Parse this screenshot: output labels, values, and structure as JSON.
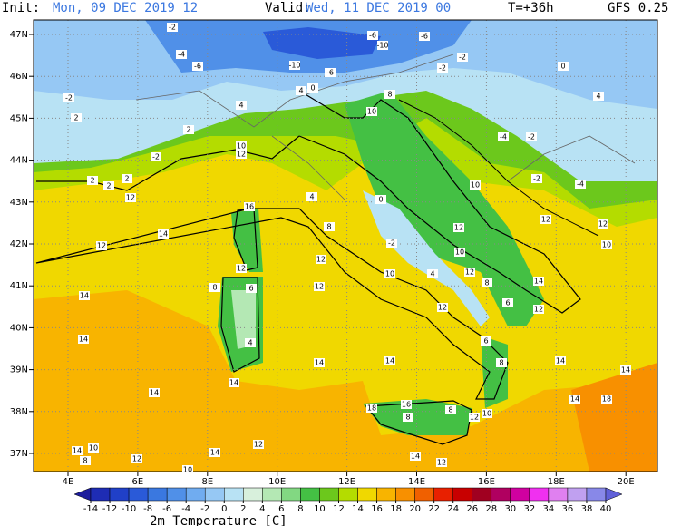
{
  "header": {
    "init_label": "Init:",
    "init": "Mon, 09 DEC 2019  12",
    "valid_label": "Valid:",
    "valid": "Wed, 11 DEC 2019  00",
    "step": "T=+36h",
    "model": "GFS 0.25"
  },
  "axes": {
    "lon_labels": [
      "4E",
      "6E",
      "8E",
      "10E",
      "12E",
      "14E",
      "16E",
      "18E",
      "20E"
    ],
    "lat_labels": [
      "47N",
      "46N",
      "45N",
      "44N",
      "43N",
      "42N",
      "41N",
      "40N",
      "39N",
      "38N",
      "37N"
    ]
  },
  "colorbar": {
    "title": "2m Temperature [C]",
    "ticks": [
      -14,
      -12,
      -10,
      -8,
      -6,
      -4,
      -2,
      0,
      2,
      4,
      6,
      8,
      10,
      12,
      14,
      16,
      18,
      20,
      22,
      24,
      26,
      28,
      30,
      32,
      34,
      36,
      38,
      40
    ],
    "colors": [
      "#1c1c9c",
      "#1e2cb4",
      "#2040c8",
      "#2a5ad8",
      "#3a78e0",
      "#5090e8",
      "#70acf0",
      "#96c8f4",
      "#b8e2f4",
      "#d8f0dc",
      "#b4e8b4",
      "#82d882",
      "#44c044",
      "#6cc81c",
      "#b4dc00",
      "#f0d800",
      "#f8b400",
      "#f89000",
      "#f06000",
      "#e82000",
      "#c80000",
      "#a00020",
      "#b00060",
      "#d000a0",
      "#f030f0",
      "#e080f0",
      "#c0a0f0",
      "#8888e8",
      "#6060d8"
    ]
  },
  "map_labels": [
    -2,
    -4,
    -6,
    -2,
    2,
    2,
    -2,
    2,
    2,
    2,
    4,
    10,
    12,
    -6,
    -10,
    -6,
    -2,
    -2,
    0,
    4,
    -4,
    -2,
    -2,
    -4,
    -10,
    -6,
    4,
    0,
    8,
    10,
    10,
    12,
    14,
    12,
    14,
    12,
    10,
    12,
    12,
    10,
    12,
    14,
    12,
    12,
    12,
    12,
    14,
    14,
    14,
    14,
    4,
    6,
    12,
    16,
    8,
    10,
    -2,
    0,
    4,
    8,
    14,
    16,
    18,
    8,
    8,
    12,
    10,
    14,
    12,
    12,
    14,
    10,
    14,
    10,
    8,
    12,
    14,
    14,
    18,
    14,
    6,
    8,
    6,
    8,
    4
  ]
}
